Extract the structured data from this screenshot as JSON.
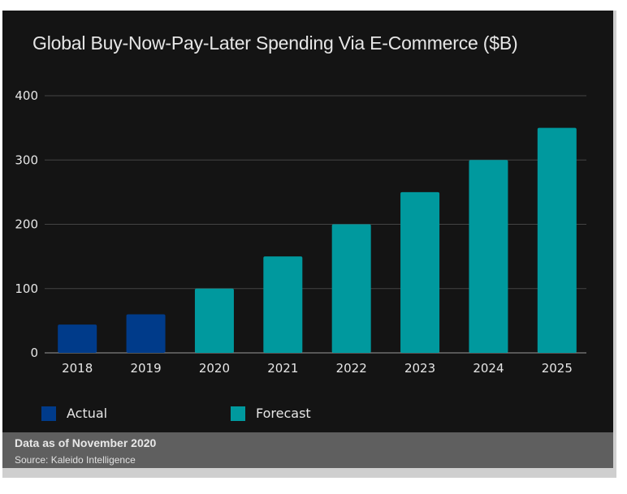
{
  "chart_data": {
    "type": "bar",
    "title": "Global Buy-Now-Pay-Later Spending Via E-Commerce ($B)",
    "categories": [
      "2018",
      "2019",
      "2020",
      "2021",
      "2022",
      "2023",
      "2024",
      "2025"
    ],
    "values": [
      44,
      60,
      100,
      150,
      200,
      250,
      300,
      350
    ],
    "status": [
      "Actual",
      "Actual",
      "Forecast",
      "Forecast",
      "Forecast",
      "Forecast",
      "Forecast",
      "Forecast"
    ],
    "ylim": [
      0,
      400
    ],
    "yticks": [
      "0",
      "100",
      "200",
      "300",
      "400"
    ],
    "grid": true,
    "legend": {
      "placement": "bottom",
      "items": [
        {
          "label": "Actual",
          "color": "#003b8a"
        },
        {
          "label": "Forecast",
          "color": "#00999e"
        }
      ]
    },
    "colors": {
      "Actual": "#003b8a",
      "Forecast": "#00999e",
      "background": "#141414"
    }
  },
  "footer": {
    "note": "Data as of November 2020",
    "source": "Source: Kaleido Intelligence"
  }
}
